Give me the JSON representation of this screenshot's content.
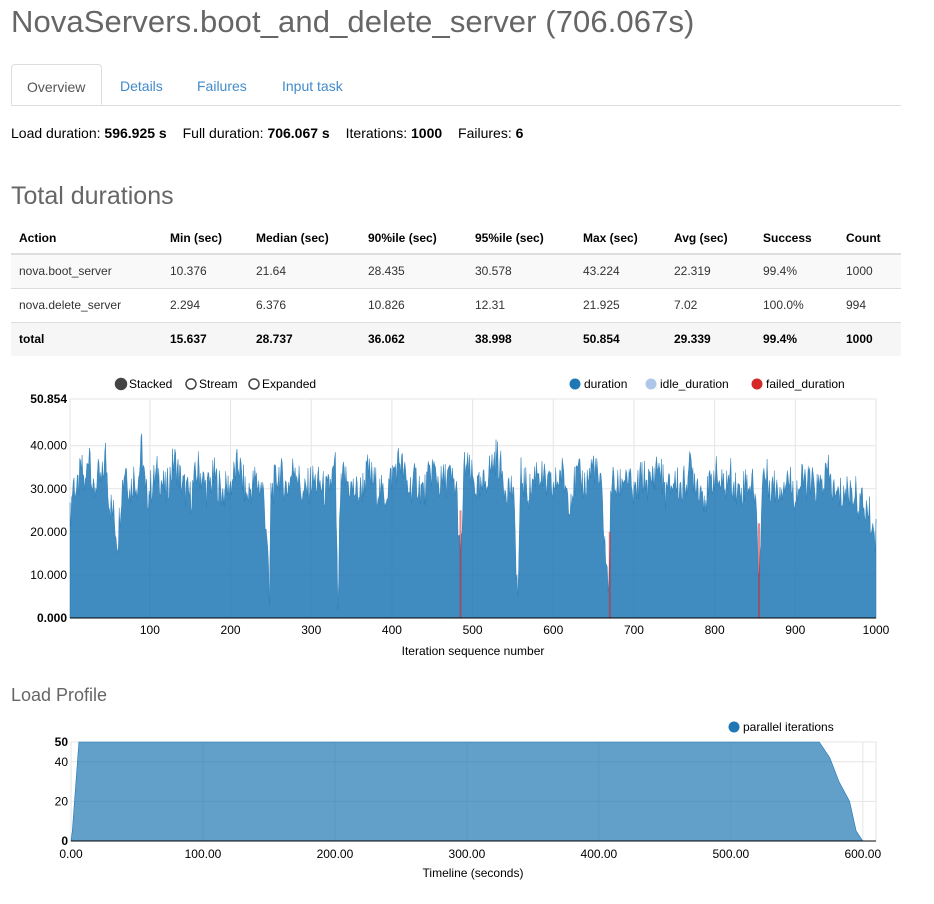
{
  "page": {
    "title": "NovaServers.boot_and_delete_server (706.067s)"
  },
  "tabs": [
    {
      "label": "Overview",
      "active": true
    },
    {
      "label": "Details",
      "active": false
    },
    {
      "label": "Failures",
      "active": false
    },
    {
      "label": "Input task",
      "active": false
    }
  ],
  "summary": {
    "load_label": "Load duration:",
    "load_value": "596.925 s",
    "full_label": "Full duration:",
    "full_value": "706.067 s",
    "iter_label": "Iterations:",
    "iter_value": "1000",
    "fail_label": "Failures:",
    "fail_value": "6"
  },
  "total_durations": {
    "heading": "Total durations",
    "columns": [
      "Action",
      "Min (sec)",
      "Median (sec)",
      "90%ile (sec)",
      "95%ile (sec)",
      "Max (sec)",
      "Avg (sec)",
      "Success",
      "Count"
    ],
    "rows": [
      [
        "nova.boot_server",
        "10.376",
        "21.64",
        "28.435",
        "30.578",
        "43.224",
        "22.319",
        "99.4%",
        "1000"
      ],
      [
        "nova.delete_server",
        "2.294",
        "6.376",
        "10.826",
        "12.31",
        "21.925",
        "7.02",
        "100.0%",
        "994"
      ],
      [
        "total",
        "15.637",
        "28.737",
        "36.062",
        "38.998",
        "50.854",
        "29.339",
        "99.4%",
        "1000"
      ]
    ]
  },
  "duration_chart": {
    "modes": [
      {
        "label": "Stacked",
        "selected": true
      },
      {
        "label": "Stream",
        "selected": false
      },
      {
        "label": "Expanded",
        "selected": false
      }
    ],
    "legend": [
      {
        "label": "duration",
        "color": "#1f77b4"
      },
      {
        "label": "idle_duration",
        "color": "#aec7e8"
      },
      {
        "label": "failed_duration",
        "color": "#d62728"
      }
    ],
    "xlabel": "Iteration sequence number"
  },
  "load_profile": {
    "heading": "Load Profile",
    "legend": [
      {
        "label": "parallel iterations",
        "color": "#1f77b4"
      }
    ],
    "xlabel": "Timeline (seconds)"
  },
  "chart_data": [
    {
      "type": "area",
      "title": "",
      "xlabel": "Iteration sequence number",
      "ylabel": "",
      "xlim": [
        1,
        1000
      ],
      "ylim": [
        0,
        50.854
      ],
      "xticks": [
        "100",
        "200",
        "300",
        "400",
        "500",
        "600",
        "700",
        "800",
        "900",
        "1000"
      ],
      "yticks": [
        "0.000",
        "10.000",
        "20.000",
        "30.000",
        "40.000",
        "50.854"
      ],
      "stacked": true,
      "series": [
        {
          "name": "duration",
          "color": "#1f77b4",
          "x": [
            1,
            5,
            10,
            15,
            20,
            25,
            30,
            35,
            40,
            45,
            50,
            55,
            60,
            65,
            70,
            75,
            80,
            85,
            90,
            95,
            100,
            110,
            120,
            130,
            140,
            150,
            160,
            170,
            180,
            190,
            200,
            210,
            220,
            230,
            240,
            245,
            248,
            250,
            260,
            270,
            280,
            290,
            300,
            310,
            320,
            330,
            333,
            336,
            340,
            350,
            360,
            370,
            380,
            390,
            400,
            410,
            420,
            430,
            440,
            450,
            460,
            470,
            480,
            485,
            490,
            500,
            510,
            520,
            530,
            540,
            550,
            556,
            560,
            570,
            580,
            590,
            600,
            610,
            620,
            630,
            640,
            650,
            660,
            668,
            672,
            680,
            690,
            700,
            710,
            720,
            730,
            740,
            750,
            760,
            770,
            780,
            790,
            800,
            810,
            820,
            830,
            840,
            850,
            855,
            860,
            870,
            880,
            890,
            900,
            910,
            920,
            930,
            940,
            950,
            960,
            970,
            980,
            990,
            995,
            1000
          ],
          "y": [
            23,
            32,
            29,
            35,
            30,
            41,
            28,
            33,
            31,
            38,
            27,
            24,
            18,
            30,
            36,
            29,
            33,
            31,
            40,
            28,
            30,
            34,
            29,
            37,
            31,
            28,
            35,
            30,
            33,
            29,
            31,
            36,
            28,
            32,
            30,
            20,
            3,
            29,
            34,
            30,
            36,
            28,
            32,
            31,
            29,
            35,
            2,
            28,
            33,
            30,
            29,
            34,
            31,
            28,
            33,
            37,
            30,
            32,
            29,
            35,
            31,
            33,
            30,
            12,
            36,
            32,
            29,
            34,
            38,
            31,
            30,
            5,
            33,
            29,
            35,
            31,
            30,
            34,
            28,
            33,
            31,
            36,
            29,
            6,
            32,
            30,
            34,
            28,
            33,
            31,
            36,
            29,
            32,
            30,
            35,
            31,
            28,
            34,
            30,
            33,
            29,
            32,
            30,
            10,
            34,
            31,
            30,
            33,
            29,
            32,
            31,
            30,
            34,
            28,
            29,
            30,
            27,
            25,
            22,
            19
          ]
        },
        {
          "name": "idle_duration",
          "color": "#aec7e8",
          "x": [
            1,
            1000
          ],
          "y": [
            0,
            0
          ]
        },
        {
          "name": "failed_duration",
          "color": "#d62728",
          "x": [
            485,
            670,
            855
          ],
          "y": [
            25,
            20,
            22
          ]
        }
      ]
    },
    {
      "type": "area",
      "title": "",
      "xlabel": "Timeline (seconds)",
      "ylabel": "",
      "xlim": [
        0,
        610
      ],
      "ylim": [
        0,
        50
      ],
      "xticks": [
        "0.00",
        "100.00",
        "200.00",
        "300.00",
        "400.00",
        "500.00",
        "600.00"
      ],
      "yticks": [
        "0",
        "20",
        "40",
        "50"
      ],
      "series": [
        {
          "name": "parallel iterations",
          "color": "#1f77b4",
          "x": [
            0,
            1,
            6,
            20,
            100,
            200,
            300,
            400,
            500,
            567,
            575,
            582,
            590,
            595,
            600
          ],
          "y": [
            0,
            5,
            50,
            50,
            50,
            50,
            50,
            50,
            50,
            50,
            42,
            30,
            20,
            5,
            0
          ]
        }
      ]
    }
  ]
}
